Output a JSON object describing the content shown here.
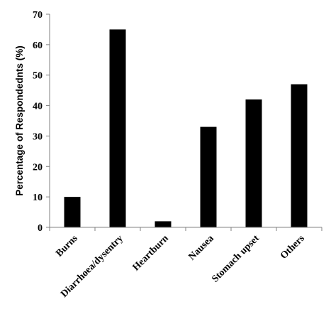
{
  "chart_data": {
    "type": "bar",
    "title": "",
    "xlabel": "",
    "ylabel": "Percentage of Respondednts (%)",
    "categories": [
      "Burns",
      "Diarrhoea/dysentry",
      "Heartburn",
      "Nausea",
      "Stomach upset",
      "Others"
    ],
    "values": [
      10,
      65,
      2,
      33,
      42,
      47
    ],
    "ylim": [
      0,
      70
    ],
    "yticks": [
      0,
      10,
      20,
      30,
      40,
      50,
      60,
      70
    ],
    "grid": false,
    "legend": "none",
    "bar_color": "#000000",
    "axis_color": "#808080"
  }
}
